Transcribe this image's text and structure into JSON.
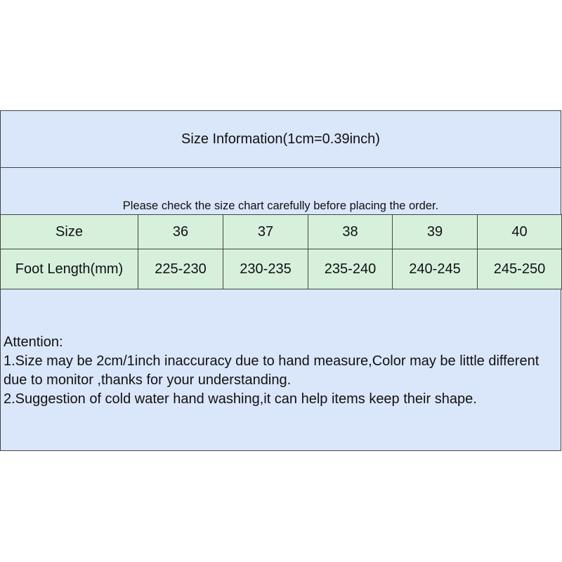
{
  "title": "Size Information(1cm=0.39inch)",
  "subtitle": "Please check the size chart carefully before placing the order.",
  "table": {
    "rows": [
      {
        "label": "Size",
        "values": [
          "36",
          "37",
          "38",
          "39",
          "40"
        ]
      },
      {
        "label": "Foot Length(mm)",
        "values": [
          "225-230",
          "230-235",
          "235-240",
          "240-245",
          "245-250"
        ]
      }
    ]
  },
  "notes": {
    "heading": "Attention:",
    "line1": "1.Size may be 2cm/1inch inaccuracy due to hand measure,Color may be little different due to monitor ,thanks for your understanding.",
    "line2": "2.Suggestion of cold water hand washing,it can help items keep their shape."
  },
  "colors": {
    "header_bg": "#dae6fa",
    "table_bg": "#d6f0dc",
    "border": "#444444"
  }
}
